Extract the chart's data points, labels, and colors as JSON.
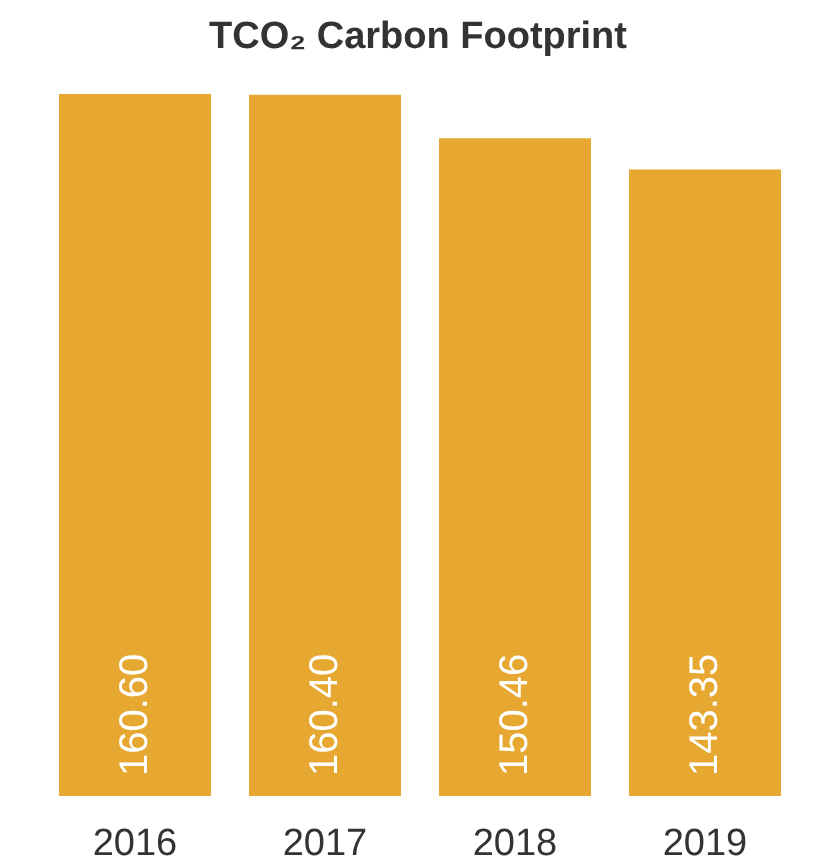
{
  "chart_data": {
    "type": "bar",
    "title": "TCO₂ Carbon Footprint",
    "categories": [
      "2016",
      "2017",
      "2018",
      "2019"
    ],
    "values": [
      160.6,
      160.4,
      150.46,
      143.35
    ],
    "value_labels": [
      "160.60",
      "160.40",
      "150.46",
      "143.35"
    ],
    "color": "#e6a830"
  }
}
